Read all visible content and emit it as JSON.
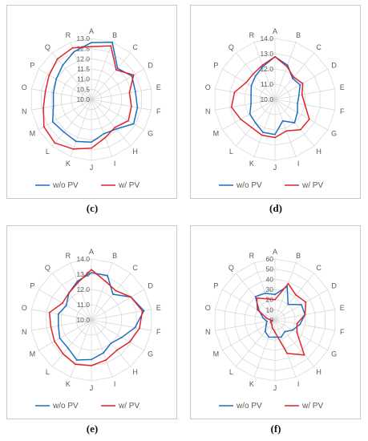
{
  "colors": {
    "without_pv": "#1f6fbf",
    "with_pv": "#e0242b",
    "grid": "#d9d9d9",
    "text": "#595959"
  },
  "chart_data": [
    {
      "type": "radar",
      "caption": "(c)",
      "categories": [
        "A",
        "B",
        "C",
        "D",
        "E",
        "F",
        "G",
        "H",
        "I",
        "J",
        "K",
        "L",
        "M",
        "N",
        "O",
        "P",
        "Q",
        "R"
      ],
      "ticks": [
        "10.0",
        "10.5",
        "11.0",
        "11.5",
        "12.0",
        "12.5",
        "13.0"
      ],
      "rlim": [
        10.0,
        13.0
      ],
      "legend_position": "bottom",
      "series": [
        {
          "name": "w/o PV",
          "values": [
            12.8,
            13.0,
            12.0,
            12.3,
            12.2,
            12.3,
            12.4,
            11.9,
            11.8,
            12.1,
            12.2,
            12.1,
            12.2,
            11.9,
            11.9,
            12.0,
            12.2,
            12.5
          ]
        },
        {
          "name": "w/ PV",
          "values": [
            12.6,
            12.8,
            11.9,
            12.4,
            11.9,
            12.0,
            12.1,
            11.8,
            12.0,
            12.4,
            12.6,
            12.8,
            12.7,
            12.4,
            12.3,
            12.4,
            12.6,
            12.7
          ]
        }
      ]
    },
    {
      "type": "radar",
      "caption": "(d)",
      "categories": [
        "A",
        "B",
        "C",
        "D",
        "E",
        "F",
        "G",
        "H",
        "I",
        "J",
        "K",
        "L",
        "M",
        "N",
        "O",
        "P",
        "Q",
        "R"
      ],
      "ticks": [
        "10.0",
        "11.0",
        "12.0",
        "13.0",
        "14.0"
      ],
      "rlim": [
        10.0,
        14.0
      ],
      "legend_position": "bottom",
      "series": [
        {
          "name": "w/o PV",
          "values": [
            12.8,
            12.4,
            11.8,
            11.9,
            11.6,
            11.5,
            11.7,
            12.0,
            11.5,
            12.3,
            12.3,
            12.0,
            11.9,
            11.6,
            11.6,
            11.8,
            12.0,
            12.3
          ]
        },
        {
          "name": "w/ PV",
          "values": [
            12.8,
            12.3,
            11.9,
            12.1,
            11.8,
            12.0,
            12.6,
            12.6,
            12.2,
            12.5,
            12.5,
            12.4,
            12.6,
            12.9,
            12.7,
            12.2,
            12.2,
            12.4
          ]
        }
      ]
    },
    {
      "type": "radar",
      "caption": "(e)",
      "categories": [
        "A",
        "B",
        "C",
        "D",
        "E",
        "F",
        "G",
        "H",
        "I",
        "J",
        "K",
        "L",
        "M",
        "N",
        "O",
        "P",
        "Q",
        "R"
      ],
      "ticks": [
        "10.0",
        "11.0",
        "12.0",
        "13.0",
        "14.0"
      ],
      "rlim": [
        10.0,
        14.0
      ],
      "legend_position": "bottom",
      "series": [
        {
          "name": "w/o PV",
          "values": [
            13.1,
            13.1,
            12.2,
            13.0,
            13.5,
            12.9,
            12.3,
            12.0,
            12.3,
            12.6,
            12.8,
            12.4,
            12.4,
            12.2,
            12.2,
            11.9,
            12.3,
            12.7
          ]
        },
        {
          "name": "w/ PV",
          "values": [
            13.3,
            12.7,
            12.5,
            13.0,
            13.4,
            13.2,
            12.9,
            12.6,
            12.8,
            13.0,
            13.1,
            12.9,
            12.8,
            12.7,
            12.8,
            12.2,
            12.3,
            12.6
          ]
        }
      ]
    },
    {
      "type": "radar",
      "caption": "(f)",
      "categories": [
        "A",
        "B",
        "C",
        "D",
        "E",
        "F",
        "G",
        "H",
        "I",
        "J",
        "K",
        "L",
        "M",
        "N",
        "O",
        "P",
        "Q",
        "R"
      ],
      "ticks": [
        "0",
        "10",
        "20",
        "30",
        "40",
        "50",
        "60"
      ],
      "rlim": [
        0,
        60
      ],
      "legend_position": "bottom",
      "series": [
        {
          "name": "w/o PV",
          "values": [
            25,
            35,
            20,
            30,
            30,
            25,
            20,
            15,
            18,
            17,
            18,
            15,
            10,
            8,
            12,
            18,
            30,
            28
          ]
        },
        {
          "name": "w/ PV",
          "values": [
            20,
            38,
            32,
            35,
            30,
            22,
            25,
            45,
            35,
            12,
            8,
            5,
            5,
            3,
            8,
            20,
            28,
            22
          ]
        }
      ]
    }
  ]
}
